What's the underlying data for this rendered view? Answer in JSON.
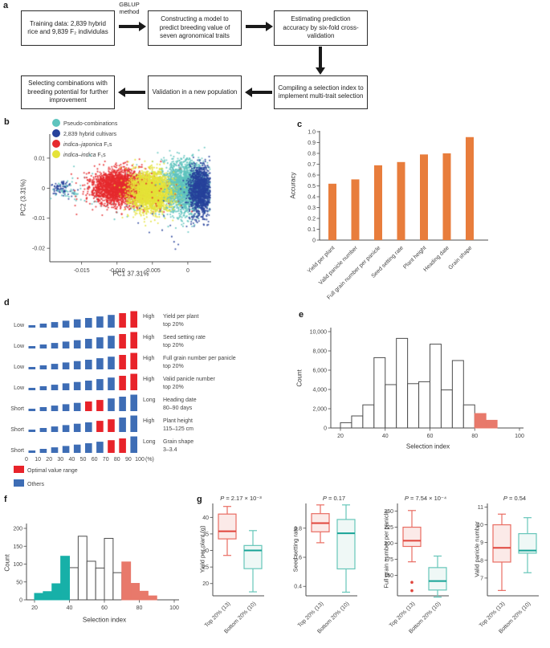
{
  "panel_labels": {
    "a": "a",
    "b": "b",
    "c": "c",
    "d": "d",
    "e": "e",
    "f": "f",
    "g": "g"
  },
  "panels": {
    "a": {
      "arrow_label": "GBLUP method",
      "boxes": [
        "Training data: 2,839 hybrid rice and 9,839 F₂ individulas",
        "Constructing a model to predict breeding value of seven agronomical traits",
        "Estimating prediction accuracy by six-fold cross-validation",
        "Compiling a selection index to implement multi-trait selection",
        "Validation in a new population",
        "Selecting combinations with breeding potential for further improvement"
      ]
    }
  },
  "chart_data": [
    {
      "id": "b",
      "type": "scatter",
      "xlabel": "PC1 37.31%",
      "ylabel": "PC2 (3.31%)",
      "xticks": [
        -0.015,
        -0.01,
        -0.005,
        0
      ],
      "xtick_labels": [
        "-0.015",
        "-0.010",
        "-0.005",
        "0"
      ],
      "yticks": [
        0.01,
        0,
        -0.01,
        -0.02
      ],
      "ytick_labels": [
        "0.01",
        "0",
        "-0.01",
        "-0.02"
      ],
      "xlim": [
        -0.0195,
        0.0033
      ],
      "ylim": [
        -0.0245,
        0.018
      ],
      "legend": [
        {
          "label": "Pseudo-combinations",
          "color": "#5EC4BE"
        },
        {
          "label": "2,839 hybrid cultivars",
          "color": "#27429B"
        },
        {
          "label_italic": "indica–japonica",
          "label": " F₁s",
          "color": "#E62A2E"
        },
        {
          "label_italic": "indica–indica",
          "label": " F₁s",
          "color": "#E5E338"
        }
      ],
      "clusters": [
        {
          "group": "pseudo-combinations",
          "color": "#5EC4BE",
          "n": 1600,
          "cx": -0.0005,
          "cy": 0.0005,
          "sx": 0.0018,
          "sy": 0.0042
        },
        {
          "group": "pseudo-combinations",
          "color": "#5EC4BE",
          "n": 130,
          "cx": -0.007,
          "cy": -0.001,
          "sx": 0.005,
          "sy": 0.004
        },
        {
          "group": "hybrid-cultivars",
          "color": "#27429B",
          "n": 80,
          "cx": -0.0178,
          "cy": 0.0,
          "sx": 0.0008,
          "sy": 0.0012
        },
        {
          "group": "pseudo-combinations",
          "color": "#5EC4BE",
          "n": 40,
          "cx": -0.0172,
          "cy": -0.001,
          "sx": 0.0012,
          "sy": 0.0015
        },
        {
          "group": "indica-japonica-F1s",
          "color": "#E62A2E",
          "n": 2300,
          "cx": -0.0097,
          "cy": 0.0003,
          "sx": 0.002,
          "sy": 0.0028
        },
        {
          "group": "indica-indica-F1s",
          "color": "#E5E338",
          "n": 2300,
          "cx": -0.0052,
          "cy": -0.0012,
          "sx": 0.0015,
          "sy": 0.0033
        },
        {
          "group": "indica-japonica-F1s",
          "color": "#E62A2E",
          "n": 50,
          "cx": -0.006,
          "cy": -0.002,
          "sx": 0.0035,
          "sy": 0.004
        },
        {
          "group": "pseudo-combinations",
          "color": "#5EC4BE",
          "n": 500,
          "cx": -0.0003,
          "cy": 0.0,
          "sx": 0.0013,
          "sy": 0.0048
        },
        {
          "group": "hybrid-cultivars",
          "color": "#27429B",
          "n": 1300,
          "cx": 0.0018,
          "cy": -0.0008,
          "sx": 0.0008,
          "sy": 0.004
        },
        {
          "group": "hybrid-cultivars",
          "color": "#27429B",
          "n": 20,
          "cx": -0.002,
          "cy": -0.012,
          "sx": 0.003,
          "sy": 0.005
        }
      ]
    },
    {
      "id": "c",
      "type": "bar",
      "ylabel": "Accuracy",
      "categories": [
        "Yield per plant",
        "Valid panicle number",
        "Full grain number per panicle",
        "Seed setting rate",
        "Plant height",
        "Heading date",
        "Grain shape"
      ],
      "values": [
        0.52,
        0.56,
        0.69,
        0.72,
        0.79,
        0.8,
        0.95
      ],
      "ytick_labels": [
        "0",
        "0.1",
        "0.2",
        "0.3",
        "0.4",
        "0.5",
        "0.6",
        "0.7",
        "0.8",
        "0.9",
        "1.0"
      ],
      "ylim": [
        0,
        1.0
      ],
      "bar_color": "#E87D3C"
    },
    {
      "id": "d",
      "type": "bar",
      "subtype": "trait-distribution-rows",
      "profile_heights": [
        3,
        5,
        6.9,
        8.6,
        10.3,
        12,
        13.9,
        15.8,
        18,
        20.5
      ],
      "rows": [
        {
          "left": "Low",
          "right": "High",
          "trait": "Yield per plant",
          "range": "top 20%",
          "optimal": [
            8,
            9
          ]
        },
        {
          "left": "Low",
          "right": "High",
          "trait": "Seed setting rate",
          "range": "top 20%",
          "optimal": [
            8,
            9
          ]
        },
        {
          "left": "Low",
          "right": "High",
          "trait": "Full grain number per panicle",
          "range": "top 20%",
          "optimal": [
            8,
            9
          ]
        },
        {
          "left": "Low",
          "right": "High",
          "trait": "Valid panicle number",
          "range": "top 20%",
          "optimal": [
            8,
            9
          ]
        },
        {
          "left": "Short",
          "right": "Long",
          "trait": "Heading date",
          "range": "80–90 days",
          "optimal": [
            5,
            6
          ]
        },
        {
          "left": "Short",
          "right": "High",
          "trait": "Plant height",
          "range": "115–125 cm",
          "optimal": [
            6,
            7
          ]
        },
        {
          "left": "Short",
          "right": "Long",
          "trait": "Grain shape",
          "range": "3–3.4",
          "optimal": [
            7,
            8
          ]
        }
      ],
      "xtick_labels": [
        "0",
        "10",
        "20",
        "30",
        "40",
        "50",
        "60",
        "70",
        "80",
        "90",
        "100"
      ],
      "x_unit": "(%)",
      "colors": {
        "optimal": "#E8232A",
        "others": "#3E6DB5"
      },
      "legend": [
        {
          "label": "Optimal value range",
          "color": "#E8232A"
        },
        {
          "label": "Others",
          "color": "#3E6DB5"
        }
      ]
    },
    {
      "id": "e",
      "type": "histogram",
      "xlabel": "Selection index",
      "ylabel": "Count",
      "bin_start": 20,
      "bin_width": 5,
      "counts": [
        550,
        1250,
        2400,
        7300,
        4500,
        9300,
        4600,
        4800,
        8700,
        3950,
        7000,
        2400,
        1500,
        800
      ],
      "highlight_from": 12,
      "highlight_color": "#E8796B",
      "yticks": [
        0,
        2000,
        4000,
        6000,
        8000,
        10000
      ],
      "ytick_labels": [
        "0",
        "2,000",
        "4,000",
        "6,000",
        "8,000",
        "10,000"
      ],
      "xticks": [
        20,
        40,
        60,
        80,
        100
      ],
      "ylim": [
        0,
        10000
      ]
    },
    {
      "id": "f",
      "type": "histogram",
      "xlabel": "Selection index",
      "ylabel": "Count",
      "bin_start": 20,
      "bin_width": 5,
      "counts": [
        18,
        23,
        45,
        122,
        90,
        178,
        108,
        89,
        172,
        76,
        106,
        46,
        24,
        11
      ],
      "left_highlight_until": 4,
      "left_color": "#17B0A8",
      "right_highlight_from": 10,
      "right_color": "#E8796B",
      "yticks": [
        0,
        50,
        100,
        150,
        200
      ],
      "ytick_labels": [
        "0",
        "50",
        "100",
        "150",
        "200"
      ],
      "xticks": [
        20,
        40,
        60,
        80,
        100
      ],
      "ylim": [
        0,
        200
      ]
    },
    {
      "id": "g",
      "type": "boxplot",
      "p_symbol": "P",
      "group_labels": [
        "Top 20% (13)",
        "Bottom 20% (10)"
      ],
      "colors": {
        "red_stroke": "#E96C62",
        "red_fill": "#FBEAE8",
        "red_median": "#E0453C",
        "teal_stroke": "#66C6B9",
        "teal_fill": "#EFF8F6",
        "teal_median": "#17A396"
      },
      "subplots": [
        {
          "p_text": " = 2.17 × 10⁻³",
          "ylabel": "Yield per plant (g)",
          "yticks": [
            20,
            25,
            30,
            35,
            40
          ],
          "ylim": [
            16.3,
            44.2
          ],
          "boxes": [
            {
              "group": "Top 20% (13)",
              "color": "red",
              "whisker_low": 28.5,
              "q1": 33.5,
              "median": 35.8,
              "q3": 41,
              "whisker_high": 43.3,
              "outliers": []
            },
            {
              "group": "Bottom 20% (10)",
              "color": "teal",
              "whisker_low": 17.5,
              "q1": 24.5,
              "median": 30,
              "q3": 31.5,
              "whisker_high": 36,
              "outliers": []
            }
          ]
        },
        {
          "p_text": " = 0.17",
          "ylabel": "Seed setting rate",
          "yticks": [
            0.4,
            0.6,
            0.8
          ],
          "ylim": [
            0.335,
            0.97
          ],
          "boxes": [
            {
              "group": "Top 20% (13)",
              "color": "red",
              "whisker_low": 0.7,
              "q1": 0.775,
              "median": 0.835,
              "q3": 0.9,
              "whisker_high": 0.96,
              "outliers": []
            },
            {
              "group": "Bottom 20% (10)",
              "color": "teal",
              "whisker_low": 0.36,
              "q1": 0.52,
              "median": 0.765,
              "q3": 0.86,
              "whisker_high": 0.96,
              "outliers": []
            }
          ]
        },
        {
          "p_text": " = 7.54 × 10⁻⁴",
          "ylabel": "Full grain number per panicle",
          "yticks": [
            150,
            175,
            200,
            225,
            250
          ],
          "ylim": [
            118,
            262
          ],
          "boxes": [
            {
              "group": "Top 20% (13)",
              "color": "red",
              "whisker_low": 171,
              "q1": 195,
              "median": 204,
              "q3": 225,
              "whisker_high": 251,
              "outliers": [
                139,
                126
              ]
            },
            {
              "group": "Bottom 20% (10)",
              "color": "teal",
              "whisker_low": 116,
              "q1": 127,
              "median": 141,
              "q3": 162,
              "whisker_high": 180,
              "outliers": []
            }
          ]
        },
        {
          "p_text": " = 0.54",
          "ylabel": "Valid panicle number",
          "yticks": [
            7,
            8,
            9,
            10,
            11
          ],
          "ylim": [
            6.0,
            11.2
          ],
          "boxes": [
            {
              "group": "Top 20% (13)",
              "color": "red",
              "whisker_low": 6.3,
              "q1": 7.9,
              "median": 8.7,
              "q3": 10.0,
              "whisker_high": 10.6,
              "outliers": []
            },
            {
              "group": "Bottom 20% (10)",
              "color": "teal",
              "whisker_low": 7.3,
              "q1": 8.4,
              "median": 8.55,
              "q3": 9.5,
              "whisker_high": 10.4,
              "outliers": []
            }
          ]
        }
      ]
    }
  ]
}
